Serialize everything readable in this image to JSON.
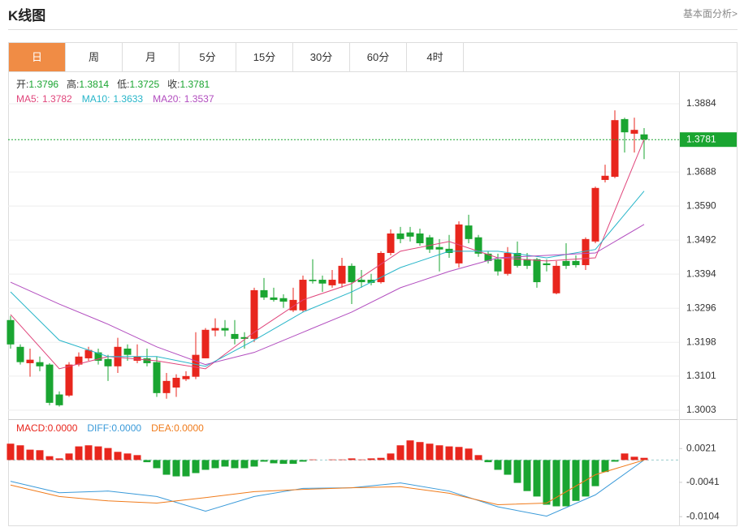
{
  "header": {
    "title": "K线图",
    "link": "基本面分析>"
  },
  "tabs": {
    "items": [
      "日",
      "周",
      "月",
      "5分",
      "15分",
      "30分",
      "60分",
      "4时"
    ],
    "active": 0
  },
  "chart_data": [
    {
      "type": "candlestick",
      "info": [
        {
          "label": "开:",
          "value": 1.3796
        },
        {
          "label": "高:",
          "value": 1.3814
        },
        {
          "label": "低:",
          "value": 1.3725
        },
        {
          "label": "收:",
          "value": 1.3781
        }
      ],
      "info_color": "#1aa531",
      "up_color": "#e8261d",
      "down_color": "#1aa531",
      "open": [
        1.3262,
        1.3185,
        1.3138,
        1.3141,
        1.3134,
        1.3048,
        1.3045,
        1.3134,
        1.3152,
        1.3169,
        1.315,
        1.3129,
        1.318,
        1.3145,
        1.3152,
        1.3141,
        1.3052,
        1.3068,
        1.3092,
        1.3099,
        1.3152,
        1.3232,
        1.3239,
        1.3222,
        1.3213,
        1.3208,
        1.3348,
        1.3327,
        1.3325,
        1.329,
        1.329,
        1.3378,
        1.3378,
        1.3362,
        1.3367,
        1.3418,
        1.3378,
        1.3378,
        1.3371,
        1.3455,
        1.3511,
        1.3514,
        1.3511,
        1.35,
        1.3472,
        1.3467,
        1.3425,
        1.3534,
        1.35,
        1.3453,
        1.3437,
        1.3395,
        1.3455,
        1.3437,
        1.3437,
        1.3425,
        1.3339,
        1.3432,
        1.3432,
        1.342,
        1.3488,
        1.3665,
        1.3674,
        1.384,
        1.3798,
        1.3796
      ],
      "close": [
        1.3192,
        1.3141,
        1.3148,
        1.3129,
        1.3024,
        1.3017,
        1.3134,
        1.3157,
        1.3176,
        1.3145,
        1.3129,
        1.3185,
        1.3162,
        1.3157,
        1.3138,
        1.3052,
        1.3087,
        1.3096,
        1.3101,
        1.3162,
        1.3234,
        1.3239,
        1.3232,
        1.3208,
        1.3208,
        1.3348,
        1.3327,
        1.332,
        1.3315,
        1.332,
        1.3378,
        1.3374,
        1.3367,
        1.3378,
        1.3418,
        1.3371,
        1.3371,
        1.3369,
        1.3455,
        1.3511,
        1.3495,
        1.3502,
        1.3483,
        1.3465,
        1.3465,
        1.3455,
        1.3537,
        1.3495,
        1.3453,
        1.3432,
        1.3402,
        1.3455,
        1.3418,
        1.3418,
        1.3371,
        1.342,
        1.3418,
        1.3418,
        1.342,
        1.3495,
        1.3642,
        1.3677,
        1.3837,
        1.3802,
        1.3809,
        1.3781
      ],
      "high": [
        1.3274,
        1.3192,
        1.318,
        1.3157,
        1.3138,
        1.3057,
        1.3141,
        1.3169,
        1.3185,
        1.318,
        1.3162,
        1.3211,
        1.3192,
        1.3192,
        1.318,
        1.3157,
        1.311,
        1.3106,
        1.3115,
        1.3227,
        1.3239,
        1.3267,
        1.3262,
        1.3262,
        1.3227,
        1.3355,
        1.3383,
        1.3355,
        1.3336,
        1.3355,
        1.339,
        1.3437,
        1.339,
        1.3406,
        1.3441,
        1.3425,
        1.3406,
        1.3395,
        1.346,
        1.3523,
        1.353,
        1.353,
        1.3525,
        1.3507,
        1.3495,
        1.3507,
        1.3546,
        1.3565,
        1.3507,
        1.346,
        1.3453,
        1.3472,
        1.3488,
        1.3455,
        1.3441,
        1.3437,
        1.3432,
        1.3483,
        1.3448,
        1.35,
        1.3646,
        1.3709,
        1.3865,
        1.3844,
        1.3844,
        1.3814
      ],
      "low": [
        1.318,
        1.3134,
        1.3099,
        1.3115,
        1.3017,
        1.3013,
        1.3041,
        1.3129,
        1.3145,
        1.3134,
        1.3087,
        1.311,
        1.3145,
        1.3138,
        1.3129,
        1.3041,
        1.3036,
        1.3041,
        1.3087,
        1.3092,
        1.3152,
        1.3215,
        1.3215,
        1.3192,
        1.318,
        1.3199,
        1.332,
        1.3315,
        1.3297,
        1.3285,
        1.3285,
        1.3367,
        1.3343,
        1.3355,
        1.3355,
        1.3308,
        1.3355,
        1.3362,
        1.3367,
        1.3448,
        1.3483,
        1.3488,
        1.3476,
        1.3455,
        1.3402,
        1.3441,
        1.3413,
        1.3483,
        1.3444,
        1.3425,
        1.339,
        1.339,
        1.3413,
        1.3409,
        1.3355,
        1.3402,
        1.3336,
        1.3409,
        1.3413,
        1.3406,
        1.3483,
        1.3658,
        1.367,
        1.3744,
        1.3744,
        1.3725
      ],
      "series": [
        {
          "name": "MA5:",
          "last": 1.3782,
          "color": "#e0457b",
          "x": [
            0,
            5,
            10,
            15,
            20,
            25,
            30,
            35,
            40,
            45,
            50,
            55,
            60,
            65
          ],
          "values": [
            1.3278,
            1.3122,
            1.3157,
            1.3145,
            1.3122,
            1.3227,
            1.332,
            1.3367,
            1.346,
            1.3488,
            1.3441,
            1.3432,
            1.3441,
            1.3782
          ]
        },
        {
          "name": "MA10:",
          "last": 1.3633,
          "color": "#27b5c9",
          "x": [
            0,
            5,
            10,
            15,
            20,
            25,
            30,
            35,
            40,
            45,
            50,
            55,
            60,
            65
          ],
          "values": [
            1.3343,
            1.3204,
            1.3157,
            1.3157,
            1.3129,
            1.3204,
            1.3285,
            1.3343,
            1.3413,
            1.346,
            1.346,
            1.3441,
            1.3465,
            1.3633
          ]
        },
        {
          "name": "MA20:",
          "last": 1.3537,
          "color": "#b24dbf",
          "x": [
            0,
            5,
            10,
            15,
            20,
            25,
            30,
            35,
            40,
            45,
            50,
            55,
            60,
            65
          ],
          "values": [
            1.3371,
            1.3308,
            1.325,
            1.3185,
            1.3134,
            1.3169,
            1.3227,
            1.3285,
            1.3355,
            1.3402,
            1.3441,
            1.3448,
            1.3455,
            1.3537
          ]
        }
      ],
      "last_price": 1.3781,
      "last_price_color": "#1aa531",
      "ylim": [
        1.2977,
        1.3961
      ],
      "yticks": [
        1.3884,
        1.3688,
        {
          "value": 1.359,
          "label": "1.3590"
        },
        1.3492,
        1.3394,
        1.3296,
        1.3198,
        1.3101,
        1.3003
      ],
      "grid": true
    },
    {
      "type": "macd",
      "info": [
        {
          "label": "MACD:",
          "value": 0,
          "value_label": "0.0000",
          "color": "#e8261d"
        },
        {
          "label": "DIFF:",
          "value": 0,
          "value_label": "0.0000",
          "color": "#3a9ad9"
        },
        {
          "label": "DEA:",
          "value": 0,
          "value_label": "0.0000",
          "color": "#f07b1b"
        }
      ],
      "up_color": "#e8261d",
      "down_color": "#1aa531",
      "values": [
        0.003,
        0.0027,
        0.0019,
        0.0018,
        0.0007,
        0.0003,
        0.0012,
        0.0025,
        0.0027,
        0.0025,
        0.0022,
        0.0015,
        0.0012,
        0.0009,
        -0.0004,
        -0.0015,
        -0.0027,
        -0.003,
        -0.003,
        -0.0024,
        -0.0018,
        -0.0015,
        -0.0012,
        -0.0015,
        -0.0015,
        -0.0012,
        -0.0003,
        -0.0006,
        -0.0007,
        -0.0007,
        -0.0003,
        0.0001,
        0,
        0.0001,
        0.0001,
        0.0003,
        0.0001,
        0.0003,
        0.0004,
        0.0012,
        0.0027,
        0.0036,
        0.0033,
        0.003,
        0.0027,
        0.0025,
        0.0024,
        0.0021,
        0.0009,
        -0.0004,
        -0.0018,
        -0.0027,
        -0.0042,
        -0.0057,
        -0.0067,
        -0.0082,
        -0.0085,
        -0.0085,
        -0.0075,
        -0.0067,
        -0.0048,
        -0.0022,
        -0.0003,
        0.0012,
        0.0006,
        0.0004
      ],
      "series": [
        {
          "name": "DIFF",
          "color": "#3a9ad9",
          "x": [
            0,
            5,
            10,
            15,
            20,
            25,
            30,
            35,
            40,
            45,
            50,
            55,
            60,
            65
          ],
          "values": [
            -0.0039,
            -0.006,
            -0.0057,
            -0.0067,
            -0.0094,
            -0.0067,
            -0.0052,
            -0.0051,
            -0.0042,
            -0.0057,
            -0.0086,
            -0.0103,
            -0.0064,
            0
          ]
        },
        {
          "name": "DEA",
          "color": "#f07b1b",
          "x": [
            0,
            5,
            10,
            15,
            20,
            25,
            30,
            35,
            40,
            45,
            50,
            55,
            60,
            65
          ],
          "values": [
            -0.0046,
            -0.0067,
            -0.0075,
            -0.0079,
            -0.0069,
            -0.0058,
            -0.0054,
            -0.0051,
            -0.0049,
            -0.0061,
            -0.0082,
            -0.0079,
            -0.0027,
            0
          ]
        }
      ],
      "ylim": [
        -0.012,
        0.0075
      ],
      "yticks": [
        0.0021,
        -0.0041,
        -0.0104
      ]
    }
  ]
}
